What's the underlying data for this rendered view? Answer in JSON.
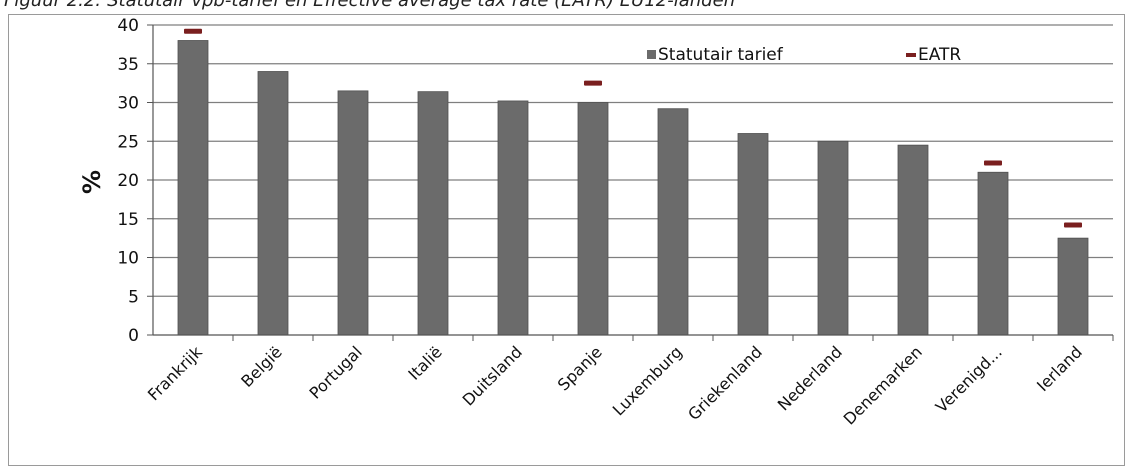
{
  "chart_data": {
    "type": "bar",
    "title": "Figuur 2.2: Statutair vpb-tarief en Effective average tax rate (EATR) EU12-landen",
    "xlabel": "",
    "ylabel": "%",
    "ylim": [
      0,
      40
    ],
    "yticks": [
      "0",
      "5",
      "10",
      "15",
      "20",
      "25",
      "30",
      "35",
      "40"
    ],
    "grid": true,
    "legend_position": "top-right",
    "categories": [
      "Frankrijk",
      "België",
      "Portugal",
      "Italië",
      "Duitsland",
      "Spanje",
      "Luxemburg",
      "Griekenland",
      "Nederland",
      "Denemarken",
      "Verenigd...",
      "Ierland"
    ],
    "series": [
      {
        "name": "Statutair tarief",
        "kind": "bar",
        "color": "#6b6b6b",
        "values": [
          38,
          34,
          31.5,
          31.4,
          30.2,
          30,
          29.2,
          26,
          25,
          24.5,
          21,
          12.5
        ]
      },
      {
        "name": "EATR",
        "kind": "dash-marker",
        "color": "#7a1f1f",
        "values": [
          39.2,
          null,
          null,
          null,
          null,
          32.5,
          null,
          null,
          null,
          null,
          22.2,
          14.2
        ]
      }
    ]
  }
}
